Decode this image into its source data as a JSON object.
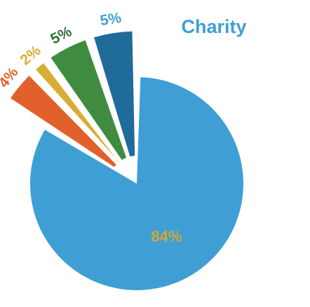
{
  "chart_data": {
    "type": "pie",
    "title": "Charity",
    "values": [
      84,
      4,
      2,
      5,
      5
    ],
    "value_labels": [
      "84%",
      "4%",
      "2%",
      "5%",
      "5%"
    ],
    "colors": [
      "#3f9fd4",
      "#e2602b",
      "#d8ad33",
      "#3f8b3f",
      "#1f6b99"
    ],
    "label_colors": [
      "#d4a637",
      "#e2602b",
      "#d8ad33",
      "#2f6e33",
      "#3f9fd4"
    ]
  }
}
